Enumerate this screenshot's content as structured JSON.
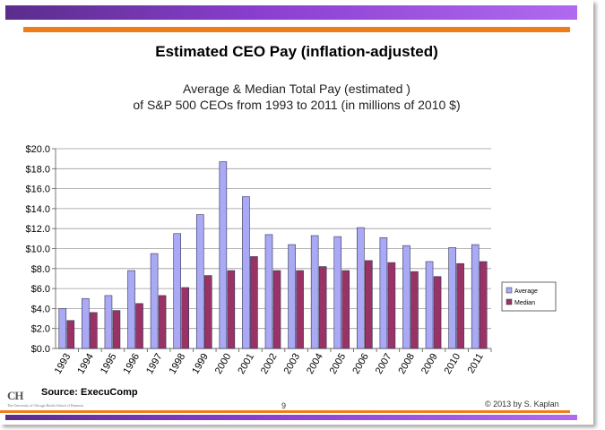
{
  "slide": {
    "title": "Estimated CEO Pay (inflation-adjusted)",
    "source": "Source:  ExecuComp",
    "page_number": "9",
    "copyright": "© 2013 by S. Kaplan",
    "logo_text": "CH",
    "logo_subtext": "The University of Chicago Booth School of Business"
  },
  "colors": {
    "band": "#8a3fd0",
    "accent": "#ef7d1a",
    "average": "#a9a9f5",
    "median": "#993366"
  },
  "chart_data": {
    "type": "bar",
    "title_lines": [
      "Average & Median Total Pay (estimated )",
      "of S&P 500 CEOs from 1993 to 2011 (in millions of 2010 $)"
    ],
    "categories": [
      "1993",
      "1994",
      "1995",
      "1996",
      "1997",
      "1998",
      "1999",
      "2000",
      "2001",
      "2002",
      "2003",
      "2004",
      "2005",
      "2006",
      "2007",
      "2008",
      "2009",
      "2010",
      "2011"
    ],
    "series": [
      {
        "name": "Average",
        "values": [
          4.0,
          5.0,
          5.3,
          7.8,
          9.5,
          11.5,
          13.4,
          18.7,
          15.2,
          11.4,
          10.4,
          11.3,
          11.2,
          12.1,
          11.1,
          10.3,
          8.7,
          10.1,
          10.4
        ]
      },
      {
        "name": "Median",
        "values": [
          2.8,
          3.6,
          3.8,
          4.5,
          5.3,
          6.1,
          7.3,
          7.8,
          9.2,
          7.8,
          7.8,
          8.2,
          7.8,
          8.8,
          8.6,
          7.7,
          7.2,
          8.5,
          8.7
        ]
      }
    ],
    "ylim": [
      0,
      20
    ],
    "yticks": [
      "$0.0",
      "$2.0",
      "$4.0",
      "$6.0",
      "$8.0",
      "$10.0",
      "$12.0",
      "$14.0",
      "$16.0",
      "$18.0",
      "$20.0"
    ],
    "grid": true,
    "legend_position": "right"
  }
}
